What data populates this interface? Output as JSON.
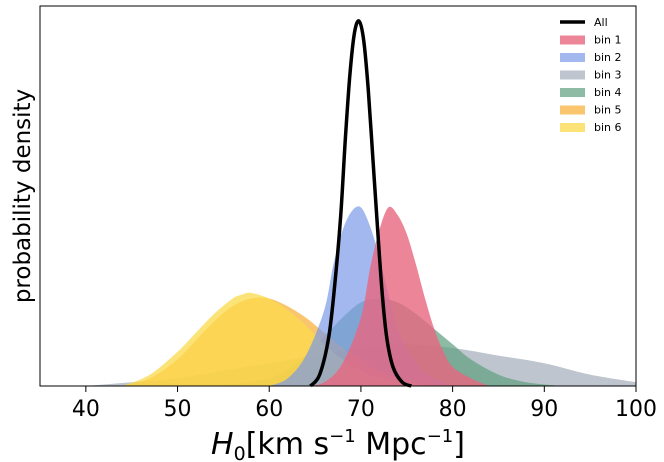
{
  "chart_data": {
    "type": "area",
    "xlabel_base": "H",
    "xlabel_sub": "0",
    "xlabel_units": "[km s",
    "xlabel_exp1": "−1",
    "xlabel_mid": " Mpc",
    "xlabel_exp2": "−1",
    "xlabel_end": "]",
    "ylabel": "probability density",
    "xlim": [
      35,
      100
    ],
    "ylim": [
      0,
      1.0
    ],
    "xticks": [
      40,
      50,
      60,
      70,
      80,
      90,
      100
    ],
    "xtick_labels": [
      "40",
      "50",
      "60",
      "70",
      "80",
      "90",
      "100"
    ],
    "y_ticks_shown": false,
    "grid": false,
    "legend_position": "top-right",
    "series": [
      {
        "name": "bin 1",
        "color": "#e8677f",
        "fill_opacity": 0.8,
        "x": [
          64,
          66,
          68,
          70,
          71,
          72,
          73,
          74,
          75,
          76,
          77,
          78,
          79,
          80,
          82,
          84
        ],
        "y": [
          0,
          0.01,
          0.06,
          0.18,
          0.31,
          0.41,
          0.47,
          0.45,
          0.4,
          0.32,
          0.23,
          0.15,
          0.09,
          0.05,
          0.02,
          0
        ]
      },
      {
        "name": "bin 2",
        "color": "#7b9ae8",
        "fill_opacity": 0.7,
        "x": [
          60,
          62,
          64,
          66,
          67,
          68,
          69,
          70,
          71,
          72,
          73,
          74,
          76,
          78,
          80
        ],
        "y": [
          0,
          0.02,
          0.08,
          0.2,
          0.32,
          0.41,
          0.46,
          0.47,
          0.42,
          0.34,
          0.24,
          0.15,
          0.06,
          0.02,
          0
        ]
      },
      {
        "name": "bin 3",
        "color": "#a8b1bf",
        "fill_opacity": 0.75,
        "x": [
          40,
          45,
          50,
          55,
          60,
          65,
          70,
          75,
          80,
          85,
          90,
          95,
          100
        ],
        "y": [
          0,
          0.01,
          0.02,
          0.04,
          0.06,
          0.08,
          0.1,
          0.11,
          0.1,
          0.08,
          0.06,
          0.03,
          0.01
        ]
      },
      {
        "name": "bin 4",
        "color": "#5e9e7e",
        "fill_opacity": 0.7,
        "x": [
          55,
          60,
          63,
          66,
          68,
          70,
          72,
          74,
          76,
          78,
          80,
          82,
          85,
          88,
          92
        ],
        "y": [
          0,
          0.02,
          0.06,
          0.13,
          0.18,
          0.22,
          0.23,
          0.22,
          0.19,
          0.15,
          0.11,
          0.07,
          0.03,
          0.01,
          0
        ]
      },
      {
        "name": "bin 5",
        "color": "#f7b23f",
        "fill_opacity": 0.75,
        "x": [
          44,
          47,
          50,
          52,
          54,
          56,
          58,
          60,
          62,
          64,
          66,
          68,
          70,
          72,
          74,
          76,
          80
        ],
        "y": [
          0,
          0.02,
          0.07,
          0.12,
          0.17,
          0.21,
          0.23,
          0.23,
          0.21,
          0.18,
          0.14,
          0.1,
          0.07,
          0.04,
          0.02,
          0.01,
          0
        ]
      },
      {
        "name": "bin 6",
        "color": "#fbd94a",
        "fill_opacity": 0.75,
        "x": [
          44,
          47,
          50,
          52,
          54,
          56,
          57,
          58,
          60,
          62,
          64,
          66,
          68,
          70,
          72,
          75,
          78
        ],
        "y": [
          0,
          0.03,
          0.09,
          0.14,
          0.19,
          0.23,
          0.24,
          0.245,
          0.23,
          0.2,
          0.16,
          0.11,
          0.07,
          0.04,
          0.02,
          0.01,
          0
        ]
      },
      {
        "name": "All",
        "color": "#000000",
        "style": "line",
        "line_width": 3.5,
        "x": [
          64.5,
          65.5,
          66.5,
          67.2,
          67.8,
          68.3,
          68.8,
          69.3,
          69.8,
          70.3,
          70.8,
          71.3,
          71.8,
          72.3,
          72.8,
          73.5,
          74.5,
          75.5
        ],
        "y": [
          0,
          0.03,
          0.13,
          0.28,
          0.45,
          0.65,
          0.82,
          0.93,
          0.96,
          0.91,
          0.78,
          0.6,
          0.42,
          0.25,
          0.13,
          0.05,
          0.01,
          0
        ]
      }
    ],
    "draw_order": [
      "bin 3",
      "bin 4",
      "bin 5",
      "bin 6",
      "bin 2",
      "bin 1",
      "All"
    ],
    "legend_order": [
      "All",
      "bin 1",
      "bin 2",
      "bin 3",
      "bin 4",
      "bin 5",
      "bin 6"
    ]
  }
}
